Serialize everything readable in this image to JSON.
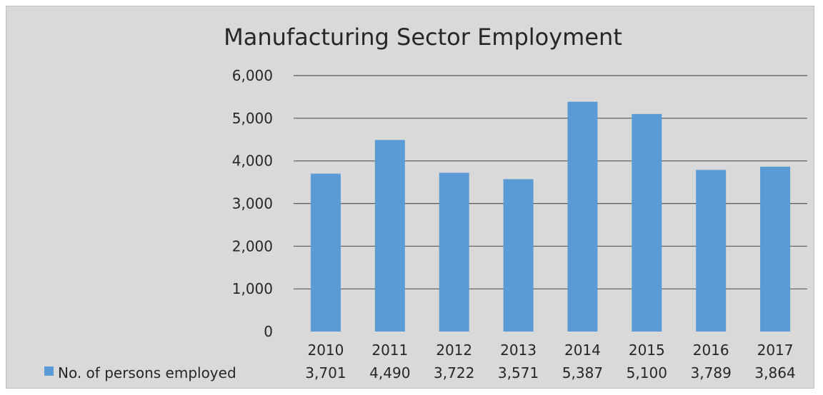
{
  "chart_data": {
    "type": "bar",
    "title": "Manufacturing Sector Employment",
    "categories": [
      "2010",
      "2011",
      "2012",
      "2013",
      "2014",
      "2015",
      "2016",
      "2017"
    ],
    "series": [
      {
        "name": "No. of persons employed",
        "values": [
          3701,
          4490,
          3722,
          3571,
          5387,
          5100,
          3789,
          3864
        ],
        "value_labels": [
          "3,701",
          "4,490",
          "3,722",
          "3,571",
          "5,387",
          "5,100",
          "3,789",
          "3,864"
        ],
        "color": "#5b9bd5"
      }
    ],
    "ylim": [
      0,
      6000
    ],
    "yticks": [
      0,
      1000,
      2000,
      3000,
      4000,
      5000,
      6000
    ],
    "ytick_labels": [
      "0",
      "1,000",
      "2,000",
      "3,000",
      "4,000",
      "5,000",
      "6,000"
    ],
    "grid": true,
    "legend": "data-table-bottom",
    "background_color": "#d9d9d9"
  }
}
